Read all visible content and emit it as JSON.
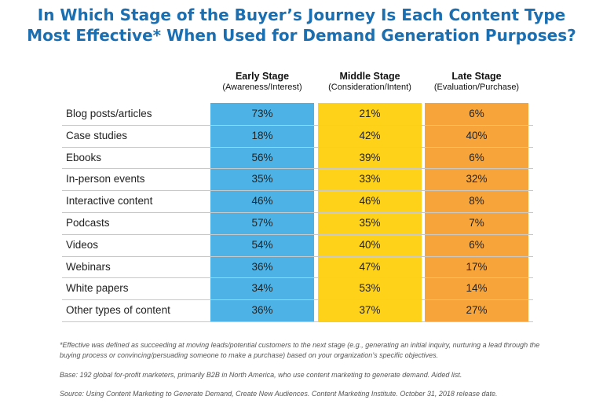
{
  "title_line1": "In Which Stage of the Buyer’s Journey Is Each Content Type",
  "title_line2": "Most Effective* When Used for Demand Generation Purposes?",
  "chart_data": {
    "type": "table",
    "columns": [
      {
        "name": "Early Stage",
        "sub": "(Awareness/Interest)",
        "color": "#4db3e6"
      },
      {
        "name": "Middle Stage",
        "sub": "(Consideration/Intent)",
        "color": "#ffd21a"
      },
      {
        "name": "Late Stage",
        "sub": "(Evaluation/Purchase)",
        "color": "#f7a53a"
      }
    ],
    "rows": [
      {
        "label": "Blog posts/articles",
        "values": [
          "73%",
          "21%",
          "6%"
        ]
      },
      {
        "label": "Case studies",
        "values": [
          "18%",
          "42%",
          "40%"
        ]
      },
      {
        "label": "Ebooks",
        "values": [
          "56%",
          "39%",
          "6%"
        ]
      },
      {
        "label": "In-person events",
        "values": [
          "35%",
          "33%",
          "32%"
        ]
      },
      {
        "label": "Interactive content",
        "values": [
          "46%",
          "46%",
          "8%"
        ]
      },
      {
        "label": "Podcasts",
        "values": [
          "57%",
          "35%",
          "7%"
        ]
      },
      {
        "label": "Videos",
        "values": [
          "54%",
          "40%",
          "6%"
        ]
      },
      {
        "label": "Webinars",
        "values": [
          "36%",
          "47%",
          "17%"
        ]
      },
      {
        "label": "White papers",
        "values": [
          "34%",
          "53%",
          "14%"
        ]
      },
      {
        "label": "Other types of content",
        "values": [
          "36%",
          "37%",
          "27%"
        ]
      }
    ]
  },
  "footnotes": {
    "definition": "*Effective was defined as succeeding at moving leads/potential customers to the next stage (e.g., generating an initial inquiry, nurturing a lead through the buying process or convincing/persuading someone to make a purchase) based on your organization’s specific objectives.",
    "base": "Base: 192 global for-profit marketers, primarily B2B in North America, who use content marketing to generate demand. Aided list.",
    "source": "Source: Using Content Marketing to Generate Demand, Create New Audiences. Content Marketing Institute. October 31, 2018 release date."
  }
}
